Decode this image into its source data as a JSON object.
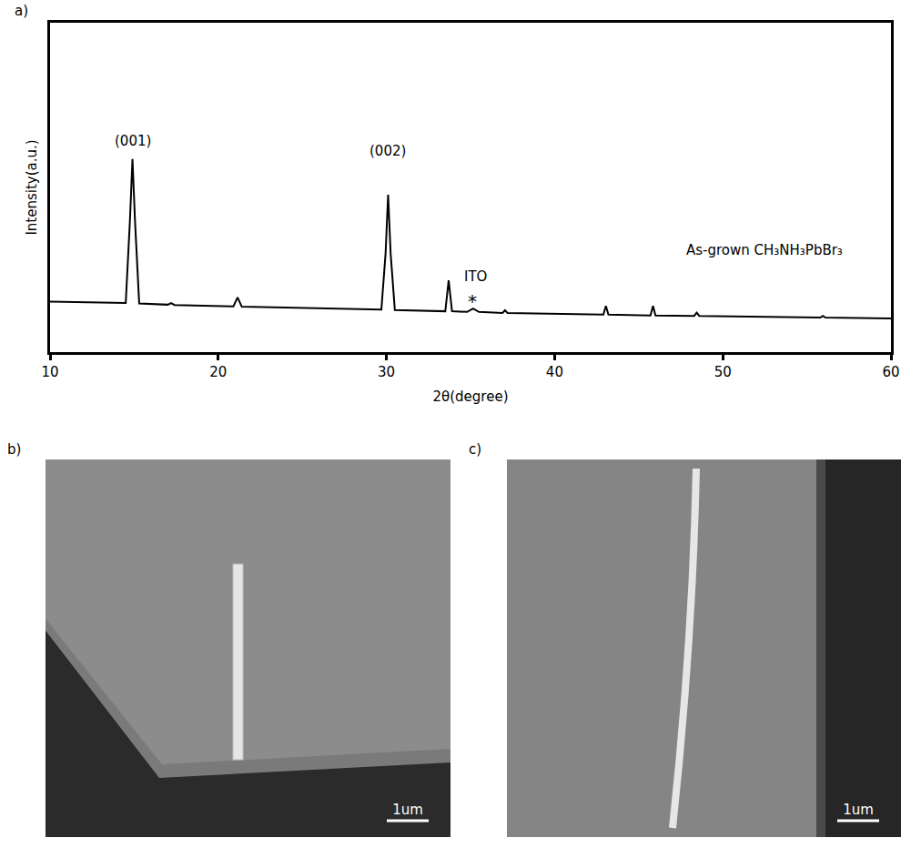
{
  "chart_data": {
    "type": "line",
    "panel": "a)",
    "x_label": "2θ(degree)",
    "y_label": "Intensity(a.u.)",
    "x": [
      10,
      14.5,
      14.75,
      14.9,
      15.05,
      15.3,
      17.0,
      17.2,
      17.4,
      20.9,
      21.15,
      21.4,
      29.7,
      29.95,
      30.1,
      30.25,
      30.5,
      33.5,
      33.7,
      33.9,
      34.8,
      35.15,
      35.5,
      36.9,
      37.05,
      37.2,
      42.9,
      43.05,
      43.2,
      45.7,
      45.85,
      46.0,
      48.3,
      48.45,
      48.6,
      55.8,
      55.95,
      56.1,
      60
    ],
    "values": [
      15.3,
      14.9,
      40,
      58.6,
      40,
      14.8,
      14.4,
      14.9,
      14.3,
      13.9,
      16.6,
      13.8,
      12.9,
      30,
      47.8,
      30,
      12.8,
      12.4,
      21.8,
      12.4,
      12.2,
      13.2,
      12.2,
      11.9,
      12.7,
      11.9,
      11.4,
      14,
      11.4,
      11.1,
      14,
      11.1,
      11,
      12,
      11,
      10.5,
      11,
      10.5,
      10.2
    ],
    "color": "#000000",
    "xlim": [
      10,
      60
    ],
    "xticks": [
      10,
      20,
      30,
      40,
      50,
      60
    ],
    "ylim": [
      0,
      100
    ],
    "yticks": [],
    "tick_labels": "x",
    "grid": false,
    "annotations": [
      {
        "text": "(001)",
        "x": 14.9,
        "y": 64
      },
      {
        "text": "(002)",
        "x": 30.1,
        "y": 61
      },
      {
        "text": "ITO",
        "x": 35.3,
        "y": 23
      },
      {
        "text": "*",
        "x": 35.1,
        "y": 15.5
      },
      {
        "text": "As-grown CH₃NH₃PbBr₃",
        "x": 52.5,
        "y": 31
      }
    ]
  },
  "images": [
    {
      "panel": "b)",
      "scale_bar": "1um"
    },
    {
      "panel": "c)",
      "scale_bar": "1um"
    }
  ]
}
